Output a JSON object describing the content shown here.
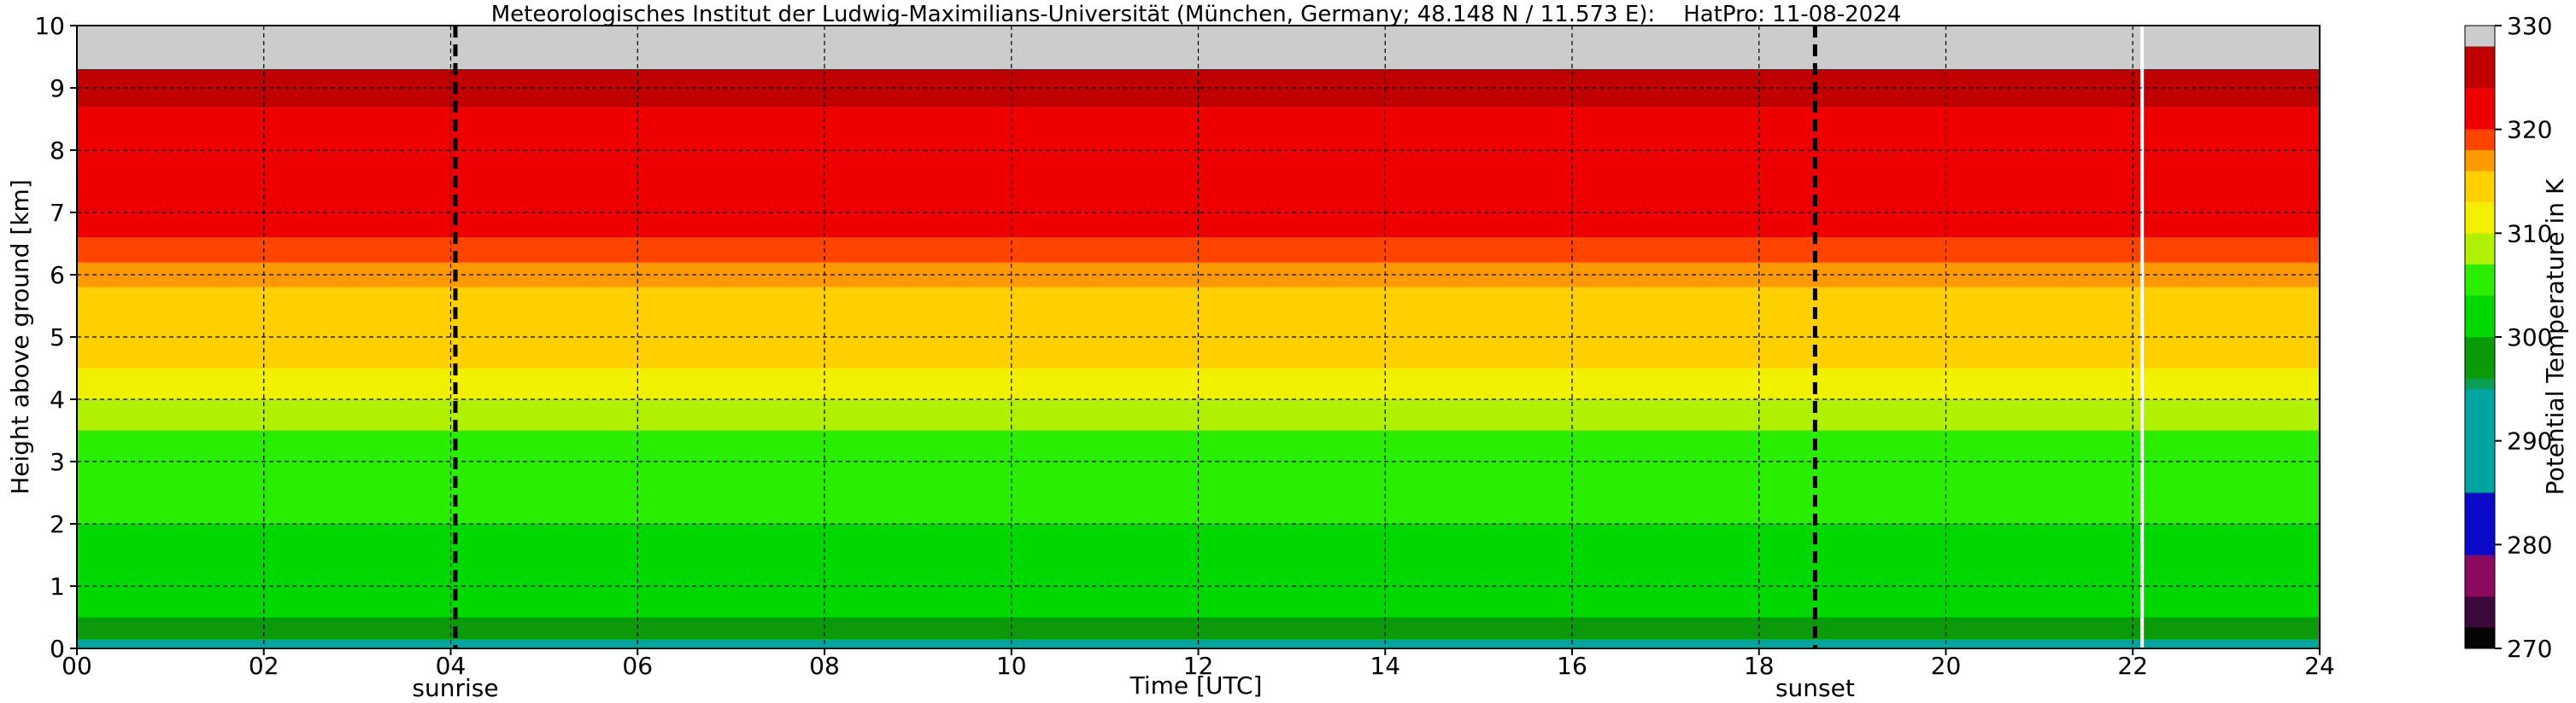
{
  "chart_data": {
    "type": "heatmap",
    "title": "Meteorologisches Institut der Ludwig-Maximilians-Universität (München, Germany; 48.148 N / 11.573 E):    HatPro: 11-08-2024",
    "xlabel": "Time [UTC]",
    "ylabel": "Height above ground [km]",
    "xlim": [
      0,
      24
    ],
    "ylim": [
      0,
      10
    ],
    "x_ticks": [
      0,
      2,
      4,
      6,
      8,
      10,
      12,
      14,
      16,
      18,
      20,
      22,
      24
    ],
    "x_tick_labels": [
      "00",
      "02",
      "04",
      "06",
      "08",
      "10",
      "12",
      "14",
      "16",
      "18",
      "20",
      "22",
      "24"
    ],
    "y_ticks": [
      0,
      1,
      2,
      3,
      4,
      5,
      6,
      7,
      8,
      9,
      10
    ],
    "y_tick_labels": [
      "0",
      "1",
      "2",
      "3",
      "4",
      "5",
      "6",
      "7",
      "8",
      "9",
      "10"
    ],
    "grid": true,
    "events": [
      {
        "label": "sunrise",
        "time": 4.05
      },
      {
        "label": "sunset",
        "time": 18.6
      }
    ],
    "data_gap_time": 22.1,
    "colorbar": {
      "label": "Potential Temperature in K",
      "range": [
        270,
        330
      ],
      "ticks": [
        270,
        280,
        290,
        300,
        310,
        320,
        330
      ],
      "levels": [
        {
          "from": 270,
          "to": 272,
          "color": "#050505"
        },
        {
          "from": 272,
          "to": 275,
          "color": "#3b0a3a"
        },
        {
          "from": 275,
          "to": 279,
          "color": "#8a0a5e"
        },
        {
          "from": 279,
          "to": 285,
          "color": "#0a0ac8"
        },
        {
          "from": 285,
          "to": 295,
          "color": "#00a5a0"
        },
        {
          "from": 295,
          "to": 296,
          "color": "#0b9e55"
        },
        {
          "from": 296,
          "to": 300,
          "color": "#0a9a0a"
        },
        {
          "from": 300,
          "to": 304,
          "color": "#00d800"
        },
        {
          "from": 304,
          "to": 307,
          "color": "#2aee00"
        },
        {
          "from": 307,
          "to": 310,
          "color": "#b0f000"
        },
        {
          "from": 310,
          "to": 313,
          "color": "#f0f000"
        },
        {
          "from": 313,
          "to": 316,
          "color": "#ffd000"
        },
        {
          "from": 316,
          "to": 318,
          "color": "#ff9900"
        },
        {
          "from": 318,
          "to": 320,
          "color": "#ff4400"
        },
        {
          "from": 320,
          "to": 324,
          "color": "#ee0000"
        },
        {
          "from": 324,
          "to": 328,
          "color": "#c00000"
        },
        {
          "from": 328,
          "to": 330,
          "color": "#cccccc"
        }
      ]
    },
    "profile": [
      {
        "height_bottom": 0.0,
        "height_top": 0.15,
        "theta_K": 294
      },
      {
        "height_bottom": 0.15,
        "height_top": 0.5,
        "theta_K": 299
      },
      {
        "height_bottom": 0.5,
        "height_top": 1.0,
        "theta_K": 300
      },
      {
        "height_bottom": 1.0,
        "height_top": 2.0,
        "theta_K": 302
      },
      {
        "height_bottom": 2.0,
        "height_top": 3.0,
        "theta_K": 304
      },
      {
        "height_bottom": 3.0,
        "height_top": 3.5,
        "theta_K": 306
      },
      {
        "height_bottom": 3.5,
        "height_top": 4.0,
        "theta_K": 309
      },
      {
        "height_bottom": 4.0,
        "height_top": 4.5,
        "theta_K": 311
      },
      {
        "height_bottom": 4.5,
        "height_top": 5.3,
        "theta_K": 313
      },
      {
        "height_bottom": 5.3,
        "height_top": 5.8,
        "theta_K": 315
      },
      {
        "height_bottom": 5.8,
        "height_top": 6.2,
        "theta_K": 317
      },
      {
        "height_bottom": 6.2,
        "height_top": 6.6,
        "theta_K": 319
      },
      {
        "height_bottom": 6.6,
        "height_top": 8.7,
        "theta_K": 322
      },
      {
        "height_bottom": 8.7,
        "height_top": 9.3,
        "theta_K": 325
      },
      {
        "height_bottom": 9.3,
        "height_top": 10.0,
        "theta_K": 329
      }
    ]
  }
}
